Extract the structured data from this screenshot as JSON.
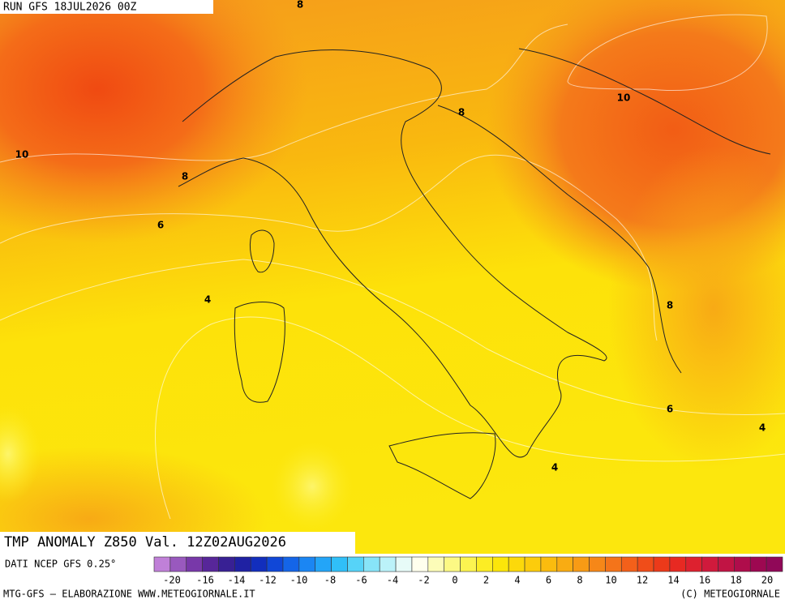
{
  "header": {
    "run": "RUN GFS 18JUL2026 00Z"
  },
  "map": {
    "contour_labels": [
      "8",
      "10",
      "8",
      "10",
      "8",
      "6",
      "4",
      "8",
      "6",
      "4",
      "4"
    ]
  },
  "title": "TMP ANOMALY Z850 Val. 12Z02AUG2026",
  "source": "DATI NCEP GFS 0.25°",
  "legend": {
    "ticks": [
      "-20",
      "-16",
      "-14",
      "-12",
      "-10",
      "-8",
      "-6",
      "-4",
      "-2",
      "0",
      "2",
      "4",
      "6",
      "8",
      "10",
      "12",
      "14",
      "16",
      "18",
      "20"
    ]
  },
  "footer": {
    "left": "MTG-GFS — ELABORAZIONE WWW.METEOGIORNALE.IT",
    "right": "(C) METEOGIORNALE"
  }
}
